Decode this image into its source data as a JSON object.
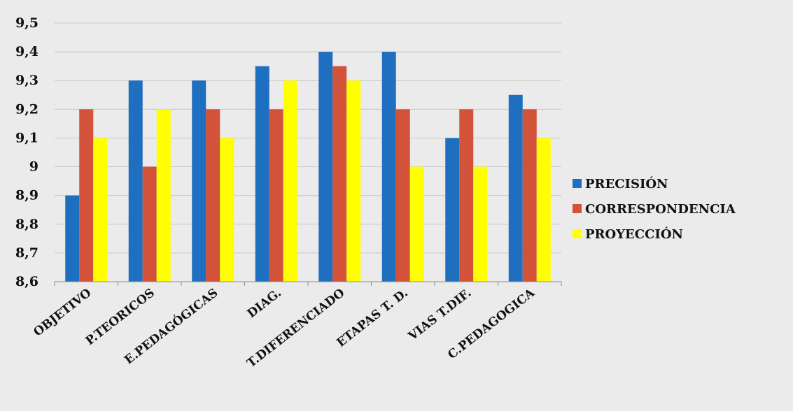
{
  "chart_data": {
    "type": "bar",
    "categories": [
      "OBJETIVO",
      "P.TEORICOS",
      "E.PEDAGÓGICAS",
      "DIAG.",
      "T.DIFERENCIADO",
      "ETAPAS T. D.",
      "VIAS T.DIF.",
      "C.PEDAGOGICA"
    ],
    "series": [
      {
        "name": "PRECISIÓN",
        "color": "#1f6fc0",
        "values": [
          8.9,
          9.3,
          9.3,
          9.35,
          9.4,
          9.4,
          9.1,
          9.25
        ]
      },
      {
        "name": "CORRESPONDENCIA",
        "color": "#d2533a",
        "values": [
          9.2,
          9.0,
          9.2,
          9.2,
          9.35,
          9.2,
          9.2,
          9.2
        ]
      },
      {
        "name": "PROYECCIÓN",
        "color": "#ffff00",
        "values": [
          9.1,
          9.2,
          9.1,
          9.3,
          9.3,
          9.0,
          9.0,
          9.1
        ]
      }
    ],
    "ylim": [
      8.6,
      9.5
    ],
    "yticks": [
      8.6,
      8.7,
      8.8,
      8.9,
      9.0,
      9.1,
      9.2,
      9.3,
      9.4,
      9.5
    ],
    "ytick_labels": [
      "8,6",
      "8,7",
      "8,8",
      "8,9",
      "9",
      "9,1",
      "9,2",
      "9,3",
      "9,4",
      "9,5"
    ],
    "grid": true,
    "legend_position": "right",
    "title": "",
    "xlabel": "",
    "ylabel": ""
  }
}
